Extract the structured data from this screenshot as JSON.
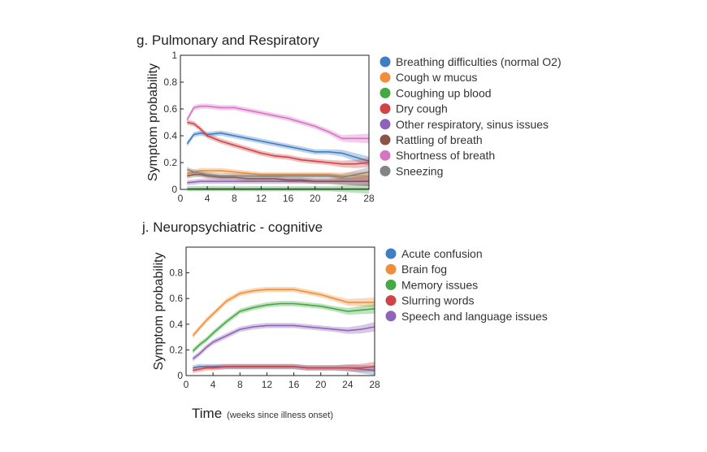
{
  "xlabel_main": "Time",
  "xlabel_sub": "(weeks since illness onset)",
  "chart_data": [
    {
      "type": "line",
      "title": "g. Pulmonary and Respiratory",
      "ylabel": "Symptom probability",
      "xlim": [
        0,
        28
      ],
      "ylim": [
        0,
        1
      ],
      "xticks": [
        0,
        4,
        8,
        12,
        16,
        20,
        24,
        28
      ],
      "yticks": [
        0,
        0.2,
        0.4,
        0.6,
        0.8,
        1
      ],
      "ytick_labels": [
        "0",
        "0.2",
        "0.4",
        "0.6",
        "0.8",
        "1"
      ],
      "grid": false,
      "legend": "right",
      "x": [
        1,
        2,
        3,
        4,
        6,
        8,
        10,
        12,
        14,
        16,
        18,
        20,
        22,
        24,
        26,
        28
      ],
      "series": [
        {
          "name": "Breathing difficulties (normal O2)",
          "color": "#3f7fc1",
          "values": [
            0.34,
            0.41,
            0.42,
            0.41,
            0.42,
            0.4,
            0.38,
            0.36,
            0.34,
            0.32,
            0.3,
            0.28,
            0.28,
            0.27,
            0.24,
            0.21
          ]
        },
        {
          "name": "Cough w mucus",
          "color": "#f28e3a",
          "values": [
            0.12,
            0.13,
            0.14,
            0.14,
            0.14,
            0.13,
            0.12,
            0.11,
            0.11,
            0.11,
            0.11,
            0.11,
            0.11,
            0.1,
            0.1,
            0.1
          ]
        },
        {
          "name": "Coughing up blood",
          "color": "#45a845",
          "values": [
            0.005,
            0.006,
            0.006,
            0.006,
            0.006,
            0.006,
            0.005,
            0.005,
            0.005,
            0.005,
            0.005,
            0.005,
            0.005,
            0.005,
            0.005,
            0.005
          ]
        },
        {
          "name": "Dry cough",
          "color": "#d04447",
          "values": [
            0.5,
            0.49,
            0.45,
            0.4,
            0.36,
            0.33,
            0.3,
            0.27,
            0.25,
            0.24,
            0.22,
            0.21,
            0.2,
            0.19,
            0.19,
            0.2
          ]
        },
        {
          "name": "Other respiratory, sinus issues",
          "color": "#8d64b8",
          "values": [
            0.05,
            0.055,
            0.06,
            0.06,
            0.06,
            0.06,
            0.06,
            0.06,
            0.06,
            0.06,
            0.06,
            0.06,
            0.06,
            0.06,
            0.06,
            0.06
          ]
        },
        {
          "name": "Rattling of breath",
          "color": "#8a5548",
          "values": [
            0.1,
            0.11,
            0.11,
            0.1,
            0.09,
            0.09,
            0.08,
            0.08,
            0.08,
            0.07,
            0.07,
            0.06,
            0.06,
            0.06,
            0.06,
            0.06
          ]
        },
        {
          "name": "Shortness of breath",
          "color": "#d774c4",
          "values": [
            0.52,
            0.61,
            0.62,
            0.62,
            0.61,
            0.61,
            0.59,
            0.57,
            0.55,
            0.53,
            0.5,
            0.47,
            0.43,
            0.38,
            0.38,
            0.38
          ]
        },
        {
          "name": "Sneezing",
          "color": "#848484",
          "values": [
            0.15,
            0.13,
            0.12,
            0.11,
            0.1,
            0.1,
            0.1,
            0.1,
            0.1,
            0.1,
            0.1,
            0.1,
            0.1,
            0.09,
            0.11,
            0.13
          ]
        }
      ]
    },
    {
      "type": "line",
      "title": "j. Neuropsychiatric - cognitive",
      "ylabel": "Symptom probability",
      "xlim": [
        0,
        28
      ],
      "ylim": [
        0,
        1
      ],
      "xticks": [
        0,
        4,
        8,
        12,
        16,
        20,
        24,
        28
      ],
      "yticks": [
        0,
        0.2,
        0.4,
        0.6,
        0.8,
        1
      ],
      "ytick_labels": [
        "0",
        "0.2",
        "0.4",
        "0.6",
        "0.8",
        ""
      ],
      "grid": false,
      "legend": "right",
      "x": [
        1,
        2,
        3,
        4,
        6,
        8,
        10,
        12,
        14,
        16,
        18,
        20,
        22,
        24,
        26,
        28
      ],
      "series": [
        {
          "name": "Acute confusion",
          "color": "#3f7fc1",
          "values": [
            0.06,
            0.07,
            0.07,
            0.07,
            0.07,
            0.07,
            0.07,
            0.07,
            0.07,
            0.07,
            0.06,
            0.06,
            0.06,
            0.06,
            0.05,
            0.04
          ]
        },
        {
          "name": "Brain fog",
          "color": "#f28e3a",
          "values": [
            0.31,
            0.37,
            0.43,
            0.48,
            0.58,
            0.64,
            0.66,
            0.67,
            0.67,
            0.67,
            0.65,
            0.63,
            0.6,
            0.57,
            0.57,
            0.57
          ]
        },
        {
          "name": "Memory issues",
          "color": "#45a845",
          "values": [
            0.19,
            0.24,
            0.28,
            0.33,
            0.42,
            0.5,
            0.53,
            0.55,
            0.56,
            0.56,
            0.55,
            0.54,
            0.52,
            0.5,
            0.51,
            0.52
          ]
        },
        {
          "name": "Slurring words",
          "color": "#d04447",
          "values": [
            0.04,
            0.05,
            0.06,
            0.06,
            0.07,
            0.07,
            0.07,
            0.07,
            0.07,
            0.07,
            0.06,
            0.06,
            0.06,
            0.06,
            0.06,
            0.07
          ]
        },
        {
          "name": "Speech and language issues",
          "color": "#8d64b8",
          "values": [
            0.13,
            0.17,
            0.22,
            0.26,
            0.31,
            0.36,
            0.38,
            0.39,
            0.39,
            0.39,
            0.38,
            0.37,
            0.36,
            0.35,
            0.36,
            0.38
          ]
        }
      ]
    }
  ]
}
